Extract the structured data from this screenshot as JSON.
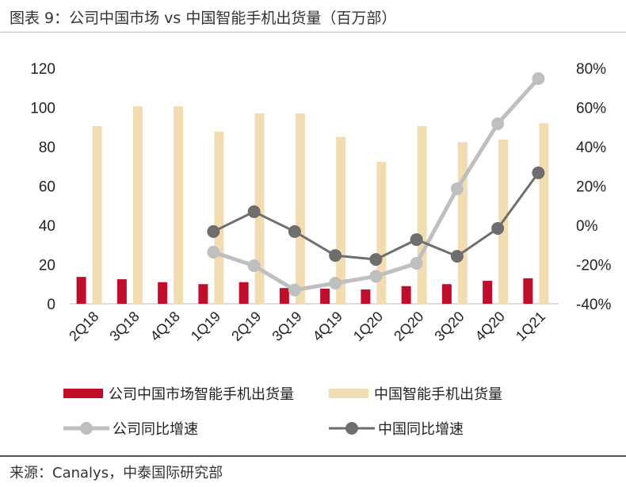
{
  "title": "图表 9：公司中国市场 vs 中国智能手机出货量（百万部）",
  "source": "来源：Canalys，中泰国际研究部",
  "chart_data": {
    "type": "bar+line",
    "categories": [
      "2Q18",
      "3Q18",
      "4Q18",
      "1Q19",
      "2Q19",
      "3Q19",
      "4Q19",
      "1Q20",
      "2Q20",
      "3Q20",
      "4Q20",
      "1Q21"
    ],
    "left_axis": {
      "range": [
        0,
        120
      ],
      "ticks": [
        "0",
        "20",
        "40",
        "60",
        "80",
        "100",
        "120"
      ]
    },
    "right_axis": {
      "range": [
        -40,
        80
      ],
      "ticks": [
        "-40%",
        "-20%",
        "0%",
        "20%",
        "40%",
        "60%",
        "80%"
      ]
    },
    "series": [
      {
        "name": "公司中国市场智能手机出货量",
        "type": "bar",
        "axis": "left",
        "color": "#c00d2b",
        "values": [
          13.7,
          12.5,
          11,
          10,
          11,
          8,
          7.7,
          7.3,
          9,
          10,
          11.7,
          13
        ]
      },
      {
        "name": "中国智能手机出货量",
        "type": "bar",
        "axis": "left",
        "color": "#f2ddb3",
        "values": [
          90.5,
          100.6,
          100.6,
          87.7,
          97,
          97,
          85,
          72.3,
          90.5,
          82.4,
          83.6,
          92
        ]
      },
      {
        "name": "公司同比增速",
        "type": "line",
        "axis": "right",
        "color": "#bfbfbf",
        "values": [
          null,
          null,
          null,
          -13.7,
          -20.6,
          -33,
          -29.5,
          -26,
          -19.4,
          18.6,
          51.7,
          74.7
        ]
      },
      {
        "name": "中国同比增速",
        "type": "line",
        "axis": "right",
        "color": "#6e6e6e",
        "values": [
          null,
          null,
          null,
          -3.2,
          6.9,
          -3.2,
          -15.4,
          -17.4,
          -7.3,
          -15.8,
          -1.6,
          26.7
        ]
      }
    ],
    "grid": false,
    "legend": "bottom"
  }
}
